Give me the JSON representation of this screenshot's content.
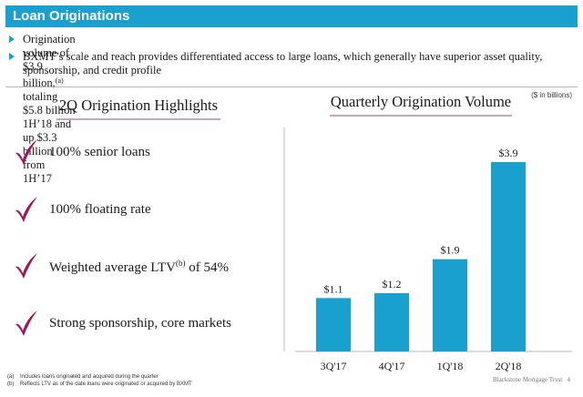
{
  "header": {
    "title": "Loan Originations"
  },
  "bullets": {
    "b1_pre": "Origination volume of $3.9 billion,",
    "b1_sup": "(a)",
    "b1_post": " totaling $5.8 billion 1H’18 and up $3.3 billion from 1H’17",
    "b2": "BXMT’s scale and reach provides differentiated access to large loans, which generally have superior asset quality, sponsorship, and credit profile"
  },
  "units": "($ in billions)",
  "highlights": {
    "title": "2Q Origination Highlights",
    "items": [
      {
        "text": "100% senior loans"
      },
      {
        "text": "100% floating rate"
      },
      {
        "text_pre": "Weighted average LTV",
        "sup": "(b)",
        "text_post": " of 54%"
      },
      {
        "text": "Strong sponsorship, core markets"
      }
    ]
  },
  "chart_title": "Quarterly Origination Volume",
  "chart_data": {
    "type": "bar",
    "title": "Quarterly Origination Volume",
    "categories": [
      "3Q'17",
      "4Q'17",
      "1Q'18",
      "2Q'18"
    ],
    "values": [
      1.1,
      1.2,
      1.9,
      3.9
    ],
    "data_labels": [
      "$1.1",
      "$1.2",
      "$1.9",
      "$3.9"
    ],
    "ylabel": "",
    "xlabel": "",
    "ylim": [
      0,
      4.2
    ],
    "grid": false,
    "legend": "none",
    "color": "#1aa0cf"
  },
  "footnotes": [
    {
      "key": "(a)",
      "text": "Includes loans originated and acquired during the quarter"
    },
    {
      "key": "(b)",
      "text": "Reflects LTV as of the date loans were originated or acquired by BXMT"
    }
  ],
  "footer": {
    "brand": "Blackstone Mortgage Trust",
    "page": "4"
  },
  "colors": {
    "accent": "#1aa0cf",
    "check": "#a0185a"
  },
  "icons": {
    "bullet": "triangle-bullet-icon",
    "check": "checkmark-icon"
  }
}
